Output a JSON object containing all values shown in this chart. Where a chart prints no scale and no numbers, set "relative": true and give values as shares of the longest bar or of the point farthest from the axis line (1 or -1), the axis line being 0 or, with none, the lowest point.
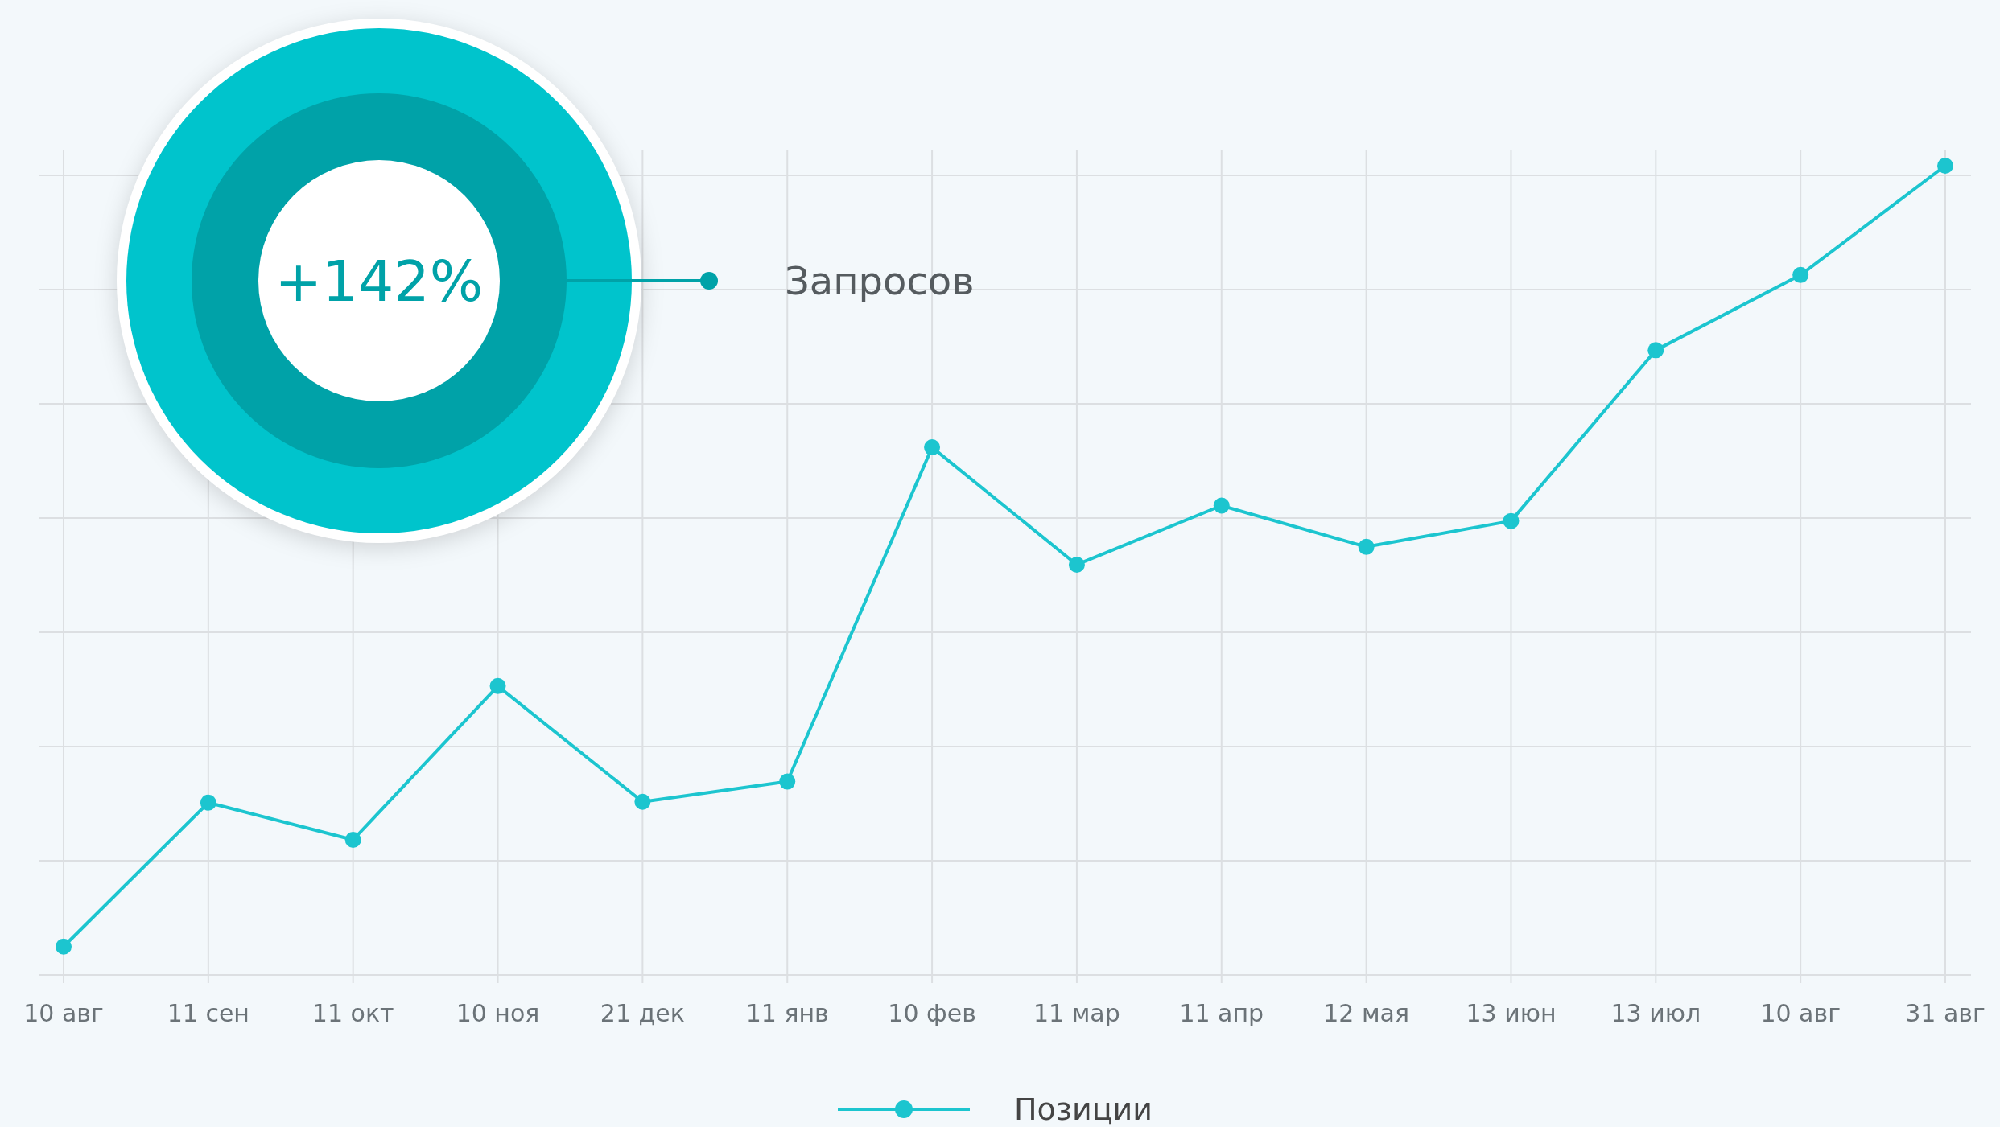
{
  "chart_data": {
    "type": "line",
    "relative": true,
    "categories": [
      "10 авг",
      "11 сен",
      "11 окт",
      "10 ноя",
      "21 дек",
      "11 янв",
      "10 фев",
      "11 мар",
      "11 апр",
      "12 мая",
      "13 июн",
      "13 июл",
      "10 авг",
      "31 авг"
    ],
    "series": [
      {
        "name": "Позиции",
        "color": "#1cc5cf",
        "values": [
          0.035,
          0.213,
          0.167,
          0.357,
          0.214,
          0.239,
          0.652,
          0.507,
          0.58,
          0.529,
          0.561,
          0.772,
          0.865,
          1.0
        ]
      }
    ],
    "annotations": [
      "+142%",
      "Запросов"
    ],
    "grid": true,
    "legend": "bottom",
    "marker": "circle",
    "line_style": "solid"
  }
}
